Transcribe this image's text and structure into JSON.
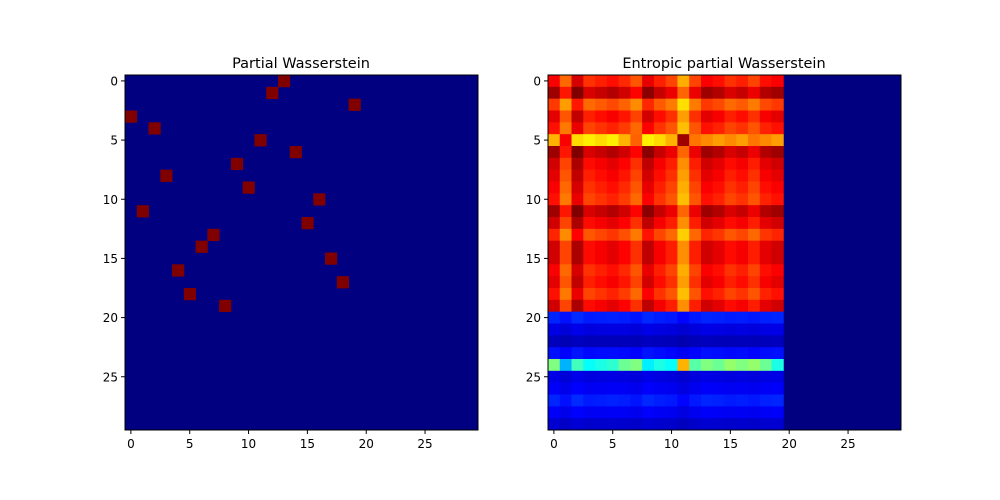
{
  "chart_data": [
    {
      "type": "heatmap",
      "title": "Partial Wasserstein",
      "xlabel": "",
      "ylabel": "",
      "colormap": "jet",
      "shape": [
        30,
        30
      ],
      "xlim": [
        -0.5,
        29.5
      ],
      "ylim": [
        29.5,
        -0.5
      ],
      "xticks": [
        0,
        5,
        10,
        15,
        20,
        25
      ],
      "yticks": [
        0,
        5,
        10,
        15,
        20,
        25
      ],
      "background_value": 0,
      "cells": [
        {
          "row": 0,
          "col": 13,
          "value": 1
        },
        {
          "row": 1,
          "col": 12,
          "value": 1
        },
        {
          "row": 2,
          "col": 19,
          "value": 1
        },
        {
          "row": 3,
          "col": 0,
          "value": 1
        },
        {
          "row": 4,
          "col": 2,
          "value": 1
        },
        {
          "row": 5,
          "col": 11,
          "value": 1
        },
        {
          "row": 6,
          "col": 14,
          "value": 1
        },
        {
          "row": 7,
          "col": 9,
          "value": 1
        },
        {
          "row": 8,
          "col": 3,
          "value": 1
        },
        {
          "row": 9,
          "col": 10,
          "value": 1
        },
        {
          "row": 10,
          "col": 16,
          "value": 1
        },
        {
          "row": 11,
          "col": 1,
          "value": 1
        },
        {
          "row": 12,
          "col": 15,
          "value": 1
        },
        {
          "row": 13,
          "col": 7,
          "value": 1
        },
        {
          "row": 14,
          "col": 6,
          "value": 1
        },
        {
          "row": 15,
          "col": 17,
          "value": 1
        },
        {
          "row": 16,
          "col": 4,
          "value": 1
        },
        {
          "row": 17,
          "col": 18,
          "value": 1
        },
        {
          "row": 18,
          "col": 5,
          "value": 1
        },
        {
          "row": 19,
          "col": 8,
          "value": 1
        }
      ]
    },
    {
      "type": "heatmap",
      "title": "Entropic partial Wasserstein",
      "xlabel": "",
      "ylabel": "",
      "colormap": "jet",
      "shape": [
        30,
        30
      ],
      "xlim": [
        -0.5,
        29.5
      ],
      "ylim": [
        29.5,
        -0.5
      ],
      "xticks": [
        0,
        5,
        10,
        15,
        20,
        25
      ],
      "yticks": [
        0,
        5,
        10,
        15,
        20,
        25
      ],
      "nonzero_columns": 20,
      "row_levels": [
        0.88,
        0.97,
        0.82,
        0.9,
        0.86,
        0.68,
        0.97,
        0.92,
        0.9,
        0.88,
        0.86,
        0.97,
        0.92,
        0.84,
        0.92,
        0.92,
        0.88,
        0.9,
        0.86,
        0.92,
        0.16,
        0.1,
        0.06,
        0.14,
        0.4,
        0.1,
        0.12,
        0.16,
        0.12,
        0.08
      ],
      "col_factors": [
        1.0,
        0.88,
        1.04,
        0.94,
        0.96,
        0.98,
        0.95,
        0.9,
        1.02,
        0.96,
        0.92,
        0.8,
        0.92,
        1.0,
        0.98,
        0.94,
        0.96,
        0.92,
        0.98,
        1.0
      ],
      "special_rows": {
        "5": [
          0.7,
          0.88,
          0.66,
          0.64,
          0.66,
          0.64,
          0.7,
          0.78,
          0.64,
          0.66,
          0.7,
          0.97,
          0.76,
          0.74,
          0.72,
          0.74,
          0.72,
          0.76,
          0.74,
          0.72
        ],
        "24": [
          0.5,
          0.3,
          0.44,
          0.38,
          0.4,
          0.42,
          0.48,
          0.5,
          0.36,
          0.4,
          0.38,
          0.7,
          0.46,
          0.5,
          0.48,
          0.52,
          0.5,
          0.52,
          0.48,
          0.4
        ]
      }
    }
  ]
}
